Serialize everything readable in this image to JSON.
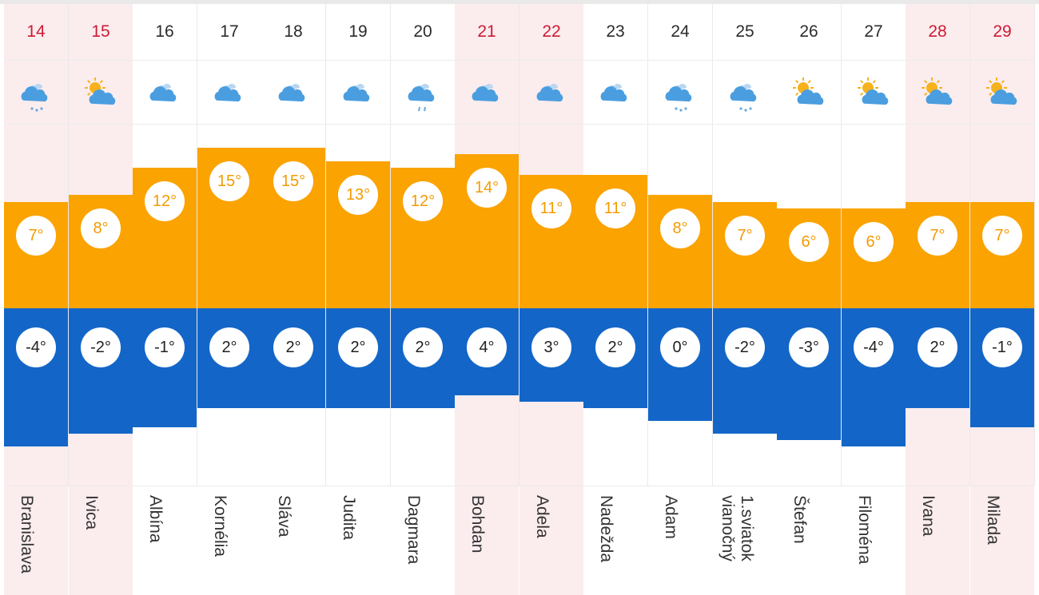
{
  "chart_data": {
    "type": "bar",
    "days": [
      {
        "day": "14",
        "weekend": true,
        "icon": "snow-cloud-icon",
        "high": 7,
        "high_label": "7°",
        "low": -4,
        "low_label": "-4°",
        "nameday": "Branislava"
      },
      {
        "day": "15",
        "weekend": true,
        "icon": "sun-cloud-icon",
        "high": 8,
        "high_label": "8°",
        "low": -2,
        "low_label": "-2°",
        "nameday": "Ivica"
      },
      {
        "day": "16",
        "weekend": false,
        "icon": "cloud-icon",
        "high": 12,
        "high_label": "12°",
        "low": -1,
        "low_label": "-1°",
        "nameday": "Albína"
      },
      {
        "day": "17",
        "weekend": false,
        "icon": "cloud-icon",
        "high": 15,
        "high_label": "15°",
        "low": 2,
        "low_label": "2°",
        "nameday": "Kornélia"
      },
      {
        "day": "18",
        "weekend": false,
        "icon": "cloud-icon",
        "high": 15,
        "high_label": "15°",
        "low": 2,
        "low_label": "2°",
        "nameday": "Sláva"
      },
      {
        "day": "19",
        "weekend": false,
        "icon": "cloud-icon",
        "high": 13,
        "high_label": "13°",
        "low": 2,
        "low_label": "2°",
        "nameday": "Judita"
      },
      {
        "day": "20",
        "weekend": false,
        "icon": "rain-cloud-icon",
        "high": 12,
        "high_label": "12°",
        "low": 2,
        "low_label": "2°",
        "nameday": "Dagmara"
      },
      {
        "day": "21",
        "weekend": true,
        "icon": "cloud-icon",
        "high": 14,
        "high_label": "14°",
        "low": 4,
        "low_label": "4°",
        "nameday": "Bohdan"
      },
      {
        "day": "22",
        "weekend": true,
        "icon": "cloud-icon",
        "high": 11,
        "high_label": "11°",
        "low": 3,
        "low_label": "3°",
        "nameday": "Adela"
      },
      {
        "day": "23",
        "weekend": false,
        "icon": "cloud-icon",
        "high": 11,
        "high_label": "11°",
        "low": 2,
        "low_label": "2°",
        "nameday": "Nadežda"
      },
      {
        "day": "24",
        "weekend": false,
        "icon": "snow-cloud-icon",
        "high": 8,
        "high_label": "8°",
        "low": 0,
        "low_label": "0°",
        "nameday": "Adam"
      },
      {
        "day": "25",
        "weekend": false,
        "icon": "snow-cloud-icon",
        "high": 7,
        "high_label": "7°",
        "low": -2,
        "low_label": "-2°",
        "nameday": "1.sviatok vianočný"
      },
      {
        "day": "26",
        "weekend": false,
        "icon": "sun-cloud-icon",
        "high": 6,
        "high_label": "6°",
        "low": -3,
        "low_label": "-3°",
        "nameday": "Štefan"
      },
      {
        "day": "27",
        "weekend": false,
        "icon": "sun-cloud-icon",
        "high": 6,
        "high_label": "6°",
        "low": -4,
        "low_label": "-4°",
        "nameday": "Filoména"
      },
      {
        "day": "28",
        "weekend": true,
        "icon": "sun-cloud-icon",
        "high": 7,
        "high_label": "7°",
        "low": 2,
        "low_label": "2°",
        "nameday": "Ivana"
      },
      {
        "day": "29",
        "weekend": true,
        "icon": "sun-cloud-icon",
        "high": 7,
        "high_label": "7°",
        "low": -1,
        "low_label": "-1°",
        "nameday": "Milada"
      }
    ],
    "colors": {
      "high_bar": "#fba300",
      "low_bar": "#1366c8",
      "weekend_text": "#cc1b34",
      "weekend_background": "#fbecee"
    }
  }
}
